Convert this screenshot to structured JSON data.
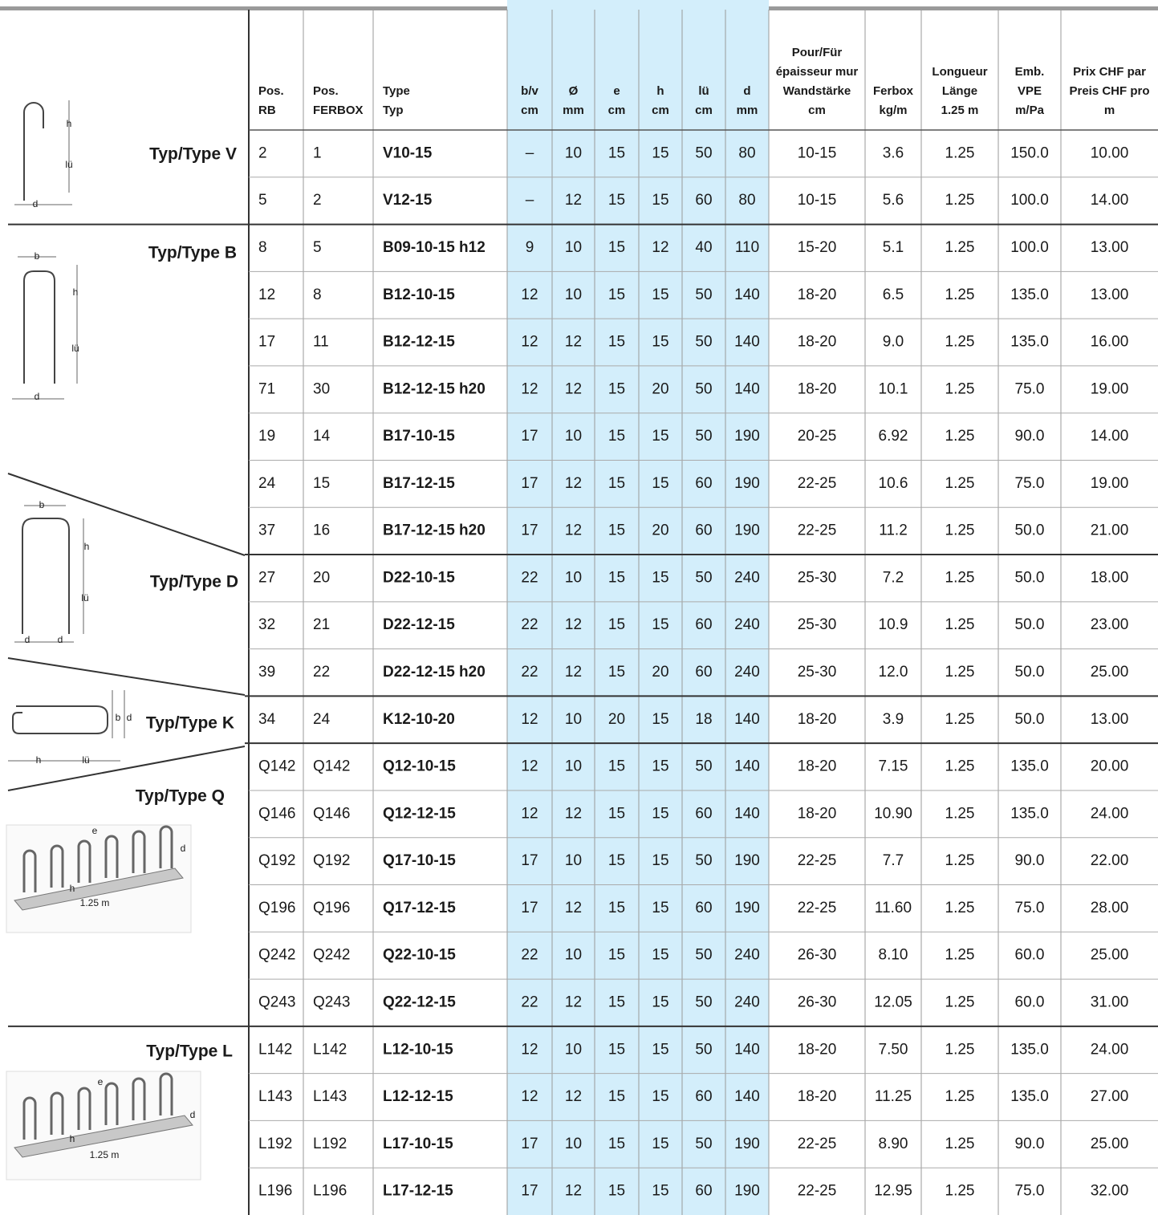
{
  "table": {
    "headers": [
      [
        "Pos.",
        "RB"
      ],
      [
        "Pos.",
        "FERBOX"
      ],
      [
        "Type",
        "Typ"
      ],
      [
        "b/v",
        "cm"
      ],
      [
        "Ø",
        "mm"
      ],
      [
        "e",
        "cm"
      ],
      [
        "h",
        "cm"
      ],
      [
        "lü",
        "cm"
      ],
      [
        "d",
        "mm"
      ],
      [
        "Pour/Für",
        "épaisseur mur",
        "Wandstärke",
        "cm"
      ],
      [
        "Ferbox",
        "kg/m"
      ],
      [
        "Longueur",
        "Länge",
        "1.25 m"
      ],
      [
        "Emb.",
        "VPE",
        "m/Pa"
      ],
      [
        "Prix CHF par",
        "Preis CHF pro",
        "m"
      ]
    ],
    "groups": [
      {
        "label": "Typ/Type V",
        "figure": [
          "h",
          "lü",
          "d"
        ],
        "rows": [
          [
            "2",
            "1",
            "V10-15",
            "–",
            "10",
            "15",
            "15",
            "50",
            "80",
            "10-15",
            "3.6",
            "1.25",
            "150.0",
            "10.00"
          ],
          [
            "5",
            "2",
            "V12-15",
            "–",
            "12",
            "15",
            "15",
            "60",
            "80",
            "10-15",
            "5.6",
            "1.25",
            "100.0",
            "14.00"
          ]
        ]
      },
      {
        "label": "Typ/Type B",
        "figure": [
          "b",
          "h",
          "lü",
          "d"
        ],
        "rows": [
          [
            "8",
            "5",
            "B09-10-15 h12",
            "9",
            "10",
            "15",
            "12",
            "40",
            "110",
            "15-20",
            "5.1",
            "1.25",
            "100.0",
            "13.00"
          ],
          [
            "12",
            "8",
            "B12-10-15",
            "12",
            "10",
            "15",
            "15",
            "50",
            "140",
            "18-20",
            "6.5",
            "1.25",
            "135.0",
            "13.00"
          ],
          [
            "17",
            "11",
            "B12-12-15",
            "12",
            "12",
            "15",
            "15",
            "50",
            "140",
            "18-20",
            "9.0",
            "1.25",
            "135.0",
            "16.00"
          ],
          [
            "71",
            "30",
            "B12-12-15 h20",
            "12",
            "12",
            "15",
            "20",
            "50",
            "140",
            "18-20",
            "10.1",
            "1.25",
            "75.0",
            "19.00"
          ],
          [
            "19",
            "14",
            "B17-10-15",
            "17",
            "10",
            "15",
            "15",
            "50",
            "190",
            "20-25",
            "6.92",
            "1.25",
            "90.0",
            "14.00"
          ],
          [
            "24",
            "15",
            "B17-12-15",
            "17",
            "12",
            "15",
            "15",
            "60",
            "190",
            "22-25",
            "10.6",
            "1.25",
            "75.0",
            "19.00"
          ],
          [
            "37",
            "16",
            "B17-12-15 h20",
            "17",
            "12",
            "15",
            "20",
            "60",
            "190",
            "22-25",
            "11.2",
            "1.25",
            "50.0",
            "21.00"
          ]
        ]
      },
      {
        "label": "Typ/Type D",
        "figure": [
          "b",
          "h",
          "lü",
          "d",
          "d"
        ],
        "rows": [
          [
            "27",
            "20",
            "D22-10-15",
            "22",
            "10",
            "15",
            "15",
            "50",
            "240",
            "25-30",
            "7.2",
            "1.25",
            "50.0",
            "18.00"
          ],
          [
            "32",
            "21",
            "D22-12-15",
            "22",
            "12",
            "15",
            "15",
            "60",
            "240",
            "25-30",
            "10.9",
            "1.25",
            "50.0",
            "23.00"
          ],
          [
            "39",
            "22",
            "D22-12-15 h20",
            "22",
            "12",
            "15",
            "20",
            "60",
            "240",
            "25-30",
            "12.0",
            "1.25",
            "50.0",
            "25.00"
          ]
        ]
      },
      {
        "label": "Typ/Type K",
        "figure": [
          "b",
          "d",
          "h",
          "lü"
        ],
        "rows": [
          [
            "34",
            "24",
            "K12-10-20",
            "12",
            "10",
            "20",
            "15",
            "18",
            "140",
            "18-20",
            "3.9",
            "1.25",
            "50.0",
            "13.00"
          ]
        ]
      },
      {
        "label": "Typ/Type Q",
        "figure": [
          "e",
          "d",
          "h",
          "1.25 m"
        ],
        "rows": [
          [
            "Q142",
            "Q142",
            "Q12-10-15",
            "12",
            "10",
            "15",
            "15",
            "50",
            "140",
            "18-20",
            "7.15",
            "1.25",
            "135.0",
            "20.00"
          ],
          [
            "Q146",
            "Q146",
            "Q12-12-15",
            "12",
            "12",
            "15",
            "15",
            "60",
            "140",
            "18-20",
            "10.90",
            "1.25",
            "135.0",
            "24.00"
          ],
          [
            "Q192",
            "Q192",
            "Q17-10-15",
            "17",
            "10",
            "15",
            "15",
            "50",
            "190",
            "22-25",
            "7.7",
            "1.25",
            "90.0",
            "22.00"
          ],
          [
            "Q196",
            "Q196",
            "Q17-12-15",
            "17",
            "12",
            "15",
            "15",
            "60",
            "190",
            "22-25",
            "11.60",
            "1.25",
            "75.0",
            "28.00"
          ],
          [
            "Q242",
            "Q242",
            "Q22-10-15",
            "22",
            "10",
            "15",
            "15",
            "50",
            "240",
            "26-30",
            "8.10",
            "1.25",
            "60.0",
            "25.00"
          ],
          [
            "Q243",
            "Q243",
            "Q22-12-15",
            "22",
            "12",
            "15",
            "15",
            "50",
            "240",
            "26-30",
            "12.05",
            "1.25",
            "60.0",
            "31.00"
          ]
        ]
      },
      {
        "label": "Typ/Type L",
        "figure": [
          "e",
          "d",
          "h",
          "1.25 m"
        ],
        "rows": [
          [
            "L142",
            "L142",
            "L12-10-15",
            "12",
            "10",
            "15",
            "15",
            "50",
            "140",
            "18-20",
            "7.50",
            "1.25",
            "135.0",
            "24.00"
          ],
          [
            "L143",
            "L143",
            "L12-12-15",
            "12",
            "12",
            "15",
            "15",
            "60",
            "140",
            "18-20",
            "11.25",
            "1.25",
            "135.0",
            "27.00"
          ],
          [
            "L192",
            "L192",
            "L17-10-15",
            "17",
            "10",
            "15",
            "15",
            "50",
            "190",
            "22-25",
            "8.90",
            "1.25",
            "90.0",
            "25.00"
          ],
          [
            "L196",
            "L196",
            "L17-12-15",
            "17",
            "12",
            "15",
            "15",
            "60",
            "190",
            "22-25",
            "12.95",
            "1.25",
            "75.0",
            "32.00"
          ]
        ]
      }
    ]
  }
}
